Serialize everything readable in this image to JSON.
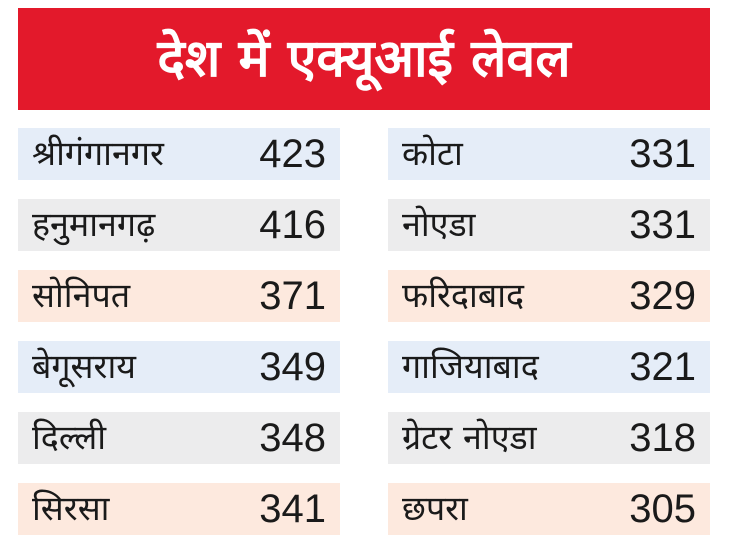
{
  "title": "देश में एक्यूआई लेवल",
  "colors": {
    "banner": "#e3192b",
    "row_blue": "#e5edf8",
    "row_gray": "#ececed",
    "row_peach": "#fde9de"
  },
  "left_column": [
    {
      "city": "श्रीगंगानगर",
      "aqi": "423"
    },
    {
      "city": "हनुमानगढ़",
      "aqi": "416"
    },
    {
      "city": "सोनिपत",
      "aqi": "371"
    },
    {
      "city": "बेगूसराय",
      "aqi": "349"
    },
    {
      "city": "दिल्ली",
      "aqi": "348"
    },
    {
      "city": "सिरसा",
      "aqi": "341"
    }
  ],
  "right_column": [
    {
      "city": "कोटा",
      "aqi": "331"
    },
    {
      "city": "नोएडा",
      "aqi": "331"
    },
    {
      "city": "फरिदाबाद",
      "aqi": "329"
    },
    {
      "city": "गाजियाबाद",
      "aqi": "321"
    },
    {
      "city": "ग्रेटर नोएडा",
      "aqi": "318"
    },
    {
      "city": "छपरा",
      "aqi": "305"
    }
  ]
}
